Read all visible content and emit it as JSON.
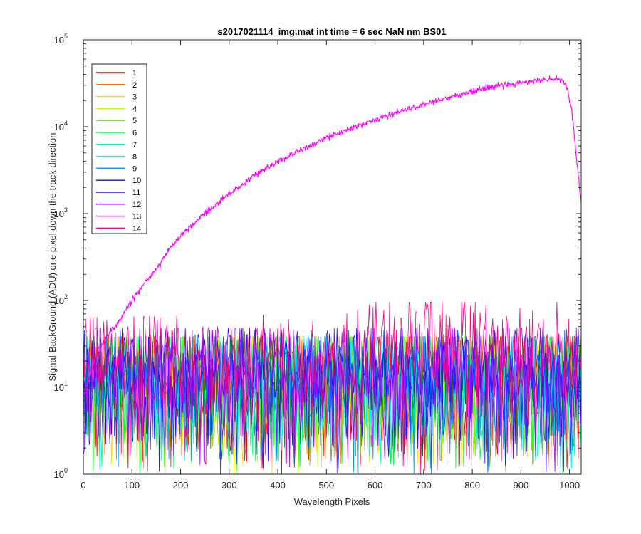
{
  "chart_data": {
    "type": "line",
    "title": "s2017021114_img.mat int time = 6 sec  NaN nm BS01",
    "xlabel": "Wavelength Pixels",
    "ylabel": "Signal-BackGround (ADU) one pixel down the track direction",
    "xlim": [
      0,
      1024
    ],
    "ylim": [
      1,
      100000
    ],
    "yscale": "log",
    "x_ticks": [
      "0",
      "100",
      "200",
      "300",
      "400",
      "500",
      "600",
      "700",
      "800",
      "900",
      "1000"
    ],
    "y_ticks": [
      {
        "base": "10",
        "exp": "0"
      },
      {
        "base": "10",
        "exp": "1"
      },
      {
        "base": "10",
        "exp": "2"
      },
      {
        "base": "10",
        "exp": "3"
      },
      {
        "base": "10",
        "exp": "4"
      },
      {
        "base": "10",
        "exp": "5"
      }
    ],
    "grid": false,
    "legend_position": "top-left",
    "series": [
      {
        "name": "1",
        "color": "#ff0000",
        "kind": "noise",
        "level": [
          [
            0,
            12
          ],
          [
            1024,
            12
          ]
        ]
      },
      {
        "name": "2",
        "color": "#ff7000",
        "kind": "noise",
        "level": [
          [
            0,
            12
          ],
          [
            1024,
            12
          ]
        ]
      },
      {
        "name": "3",
        "color": "#ffd600",
        "kind": "noise",
        "level": [
          [
            0,
            12
          ],
          [
            1024,
            12
          ]
        ]
      },
      {
        "name": "4",
        "color": "#b6ff00",
        "kind": "noise",
        "level": [
          [
            0,
            12
          ],
          [
            1024,
            12
          ]
        ]
      },
      {
        "name": "5",
        "color": "#55ff00",
        "kind": "noise",
        "level": [
          [
            0,
            12
          ],
          [
            1024,
            12
          ]
        ]
      },
      {
        "name": "6",
        "color": "#00ff3a",
        "kind": "noise",
        "level": [
          [
            0,
            12
          ],
          [
            1024,
            12
          ]
        ]
      },
      {
        "name": "7",
        "color": "#00ffa5",
        "kind": "noise",
        "level": [
          [
            0,
            12
          ],
          [
            1024,
            12
          ]
        ]
      },
      {
        "name": "8",
        "color": "#00f0ff",
        "kind": "noise",
        "level": [
          [
            0,
            12
          ],
          [
            1024,
            12
          ]
        ]
      },
      {
        "name": "9",
        "color": "#0094ff",
        "kind": "noise",
        "level": [
          [
            0,
            12
          ],
          [
            1024,
            12
          ]
        ]
      },
      {
        "name": "10",
        "color": "#0030ff",
        "kind": "noise",
        "level": [
          [
            0,
            14
          ],
          [
            1024,
            14
          ]
        ]
      },
      {
        "name": "11",
        "color": "#3a00ff",
        "kind": "noise",
        "level": [
          [
            0,
            15
          ],
          [
            1024,
            15
          ]
        ]
      },
      {
        "name": "12",
        "color": "#9d00ff",
        "kind": "noise",
        "level": [
          [
            0,
            15
          ],
          [
            1024,
            15
          ]
        ]
      },
      {
        "name": "13",
        "color": "#ff00ff",
        "kind": "signal",
        "level": [
          [
            0,
            8
          ],
          [
            15,
            15
          ],
          [
            25,
            22
          ],
          [
            50,
            40
          ],
          [
            75,
            60
          ],
          [
            100,
            100
          ],
          [
            130,
            170
          ],
          [
            150,
            230
          ],
          [
            175,
            380
          ],
          [
            200,
            550
          ],
          [
            250,
            1000
          ],
          [
            300,
            1700
          ],
          [
            350,
            2700
          ],
          [
            400,
            4000
          ],
          [
            450,
            5500
          ],
          [
            500,
            7500
          ],
          [
            550,
            9500
          ],
          [
            600,
            12000
          ],
          [
            650,
            15000
          ],
          [
            700,
            18000
          ],
          [
            750,
            21500
          ],
          [
            800,
            25500
          ],
          [
            850,
            29500
          ],
          [
            900,
            32000
          ],
          [
            940,
            34500
          ],
          [
            970,
            35500
          ],
          [
            985,
            34500
          ],
          [
            995,
            28000
          ],
          [
            1005,
            15000
          ],
          [
            1015,
            4000
          ],
          [
            1024,
            1300
          ]
        ]
      },
      {
        "name": "14",
        "color": "#ff0080",
        "kind": "noise",
        "level": [
          [
            0,
            20
          ],
          [
            550,
            22
          ],
          [
            600,
            30
          ],
          [
            1024,
            30
          ]
        ]
      }
    ]
  }
}
